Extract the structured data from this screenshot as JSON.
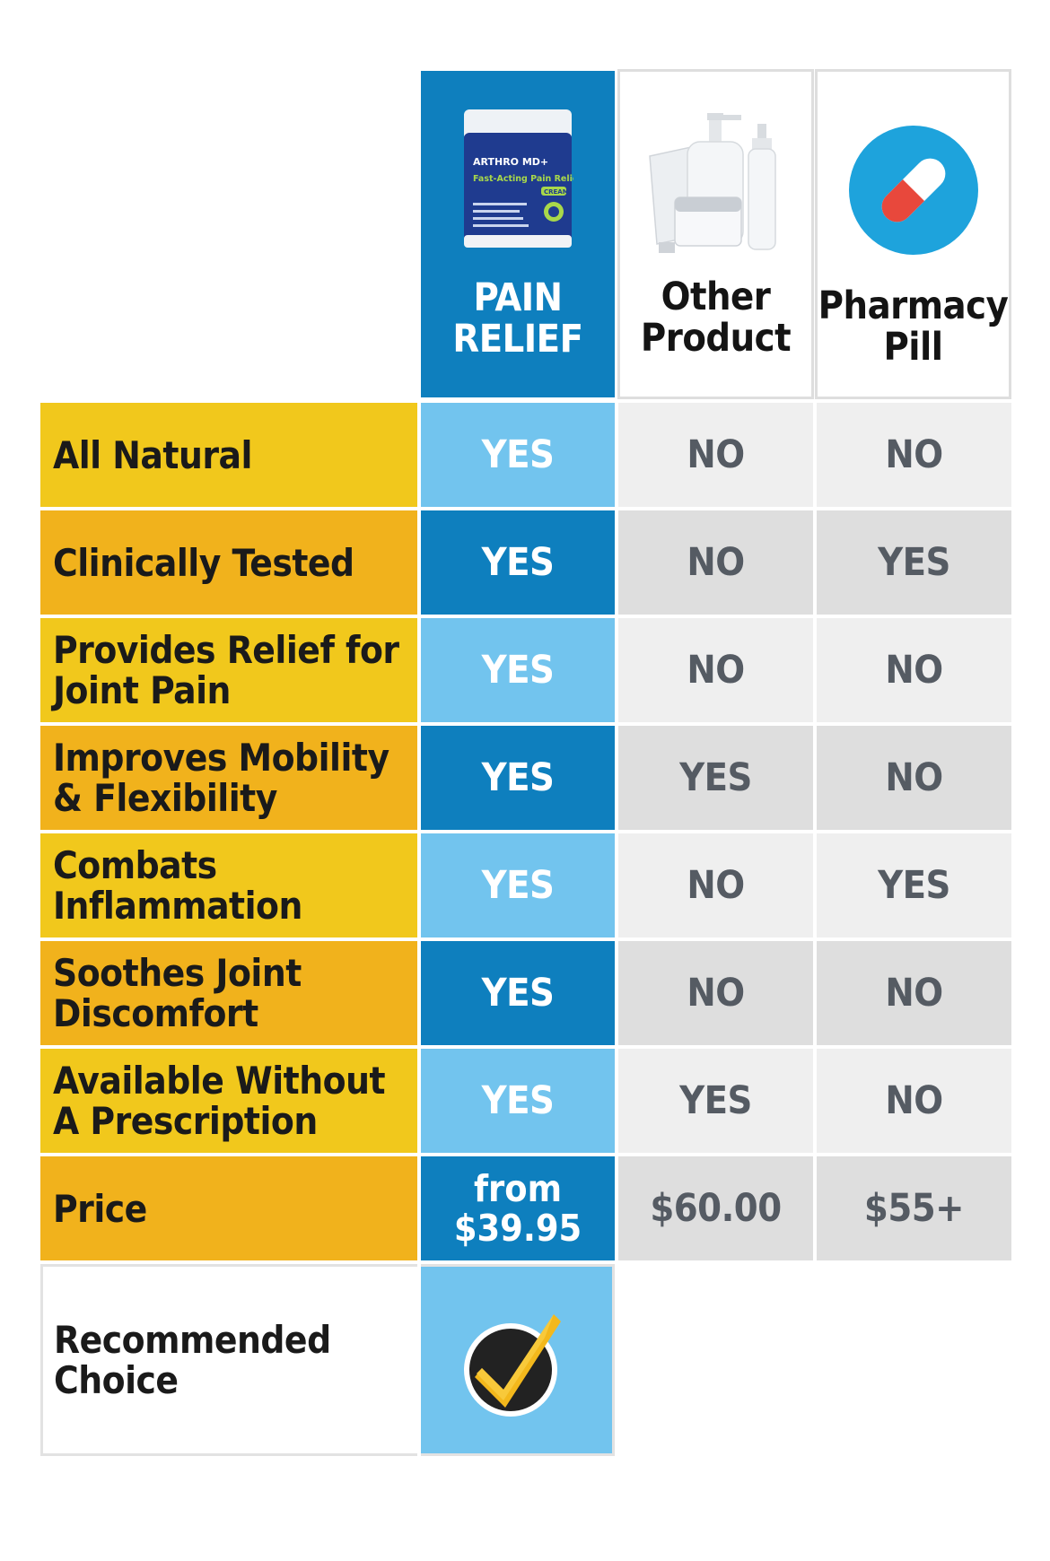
{
  "columns": [
    {
      "label_line1": "PAIN",
      "label_line2": "RELIEF",
      "image": "pain-relief-cream-jar"
    },
    {
      "label_line1": "Other",
      "label_line2": "Product",
      "image": "cosmetic-bottles"
    },
    {
      "label_line1": "Pharmacy",
      "label_line2": "Pill",
      "image": "pill-capsule-icon"
    }
  ],
  "jar": {
    "brand": "ARTHRO MD+",
    "tagline": "Fast-Acting Pain Relief",
    "badge": "CREAM"
  },
  "rows": [
    {
      "feature": "All Natural",
      "values": [
        "YES",
        "NO",
        "NO"
      ]
    },
    {
      "feature": "Clinically Tested",
      "values": [
        "YES",
        "NO",
        "YES"
      ]
    },
    {
      "feature": "Provides Relief for Joint Pain",
      "values": [
        "YES",
        "NO",
        "NO"
      ]
    },
    {
      "feature": "Improves Mobility & Flexibility",
      "values": [
        "YES",
        "YES",
        "NO"
      ]
    },
    {
      "feature": "Combats Inflammation",
      "values": [
        "YES",
        "NO",
        "YES"
      ]
    },
    {
      "feature": "Soothes Joint Discomfort",
      "values": [
        "YES",
        "NO",
        "NO"
      ]
    },
    {
      "feature": "Available Without A Prescription",
      "values": [
        "YES",
        "YES",
        "NO"
      ]
    },
    {
      "feature": "Price",
      "values": [
        "from $39.95",
        "$60.00",
        "$55+"
      ]
    }
  ],
  "recommended": {
    "label": "Recommended Choice",
    "icon": "checkmark-icon"
  },
  "colors": {
    "blue_dark": "#0e7fbe",
    "blue_light": "#72c4ee",
    "gold_light": "#f1c81c",
    "gold_dark": "#f1b21c",
    "gray_light": "#efefef",
    "gray_dark": "#dedede"
  }
}
